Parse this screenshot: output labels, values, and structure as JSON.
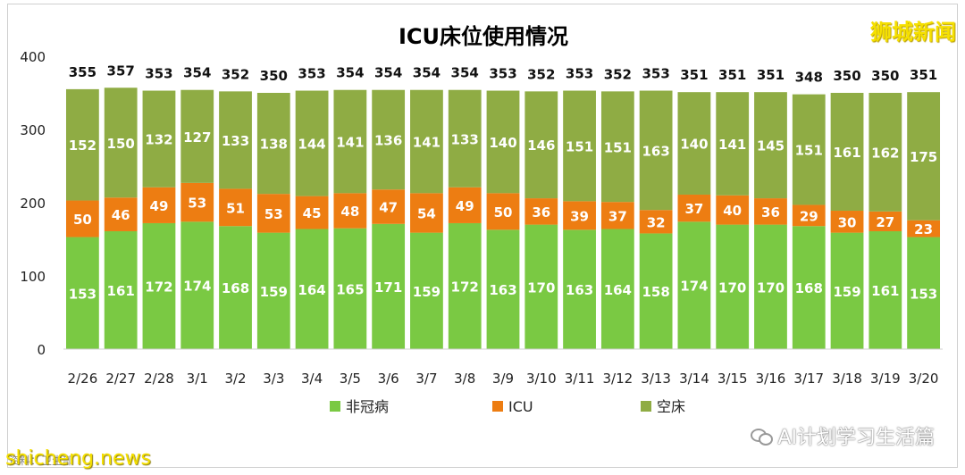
{
  "chart_data": {
    "type": "bar",
    "stacked": true,
    "title": "ICU床位使用情况",
    "ylim": [
      0,
      400
    ],
    "yticks": [
      0,
      100,
      200,
      300,
      400
    ],
    "grid": false,
    "legend_position": "bottom",
    "categories": [
      "2/26",
      "2/27",
      "2/28",
      "3/1",
      "3/2",
      "3/3",
      "3/4",
      "3/5",
      "3/6",
      "3/7",
      "3/8",
      "3/9",
      "3/10",
      "3/11",
      "3/12",
      "3/13",
      "3/14",
      "3/15",
      "3/16",
      "3/17",
      "3/18",
      "3/19",
      "3/20"
    ],
    "series": [
      {
        "name": "非冠病",
        "color": "#7ac943",
        "values": [
          153,
          161,
          172,
          174,
          168,
          159,
          164,
          165,
          171,
          159,
          172,
          163,
          170,
          163,
          164,
          158,
          174,
          170,
          170,
          168,
          159,
          161,
          153
        ]
      },
      {
        "name": "ICU",
        "color": "#ed7d12",
        "values": [
          50,
          46,
          49,
          53,
          51,
          53,
          45,
          48,
          47,
          54,
          49,
          50,
          36,
          39,
          37,
          32,
          37,
          40,
          36,
          29,
          30,
          27,
          23
        ]
      },
      {
        "name": "空床",
        "color": "#8fac44",
        "values": [
          152,
          150,
          132,
          127,
          133,
          138,
          144,
          141,
          136,
          141,
          133,
          140,
          146,
          151,
          151,
          163,
          140,
          141,
          145,
          151,
          161,
          162,
          175
        ]
      }
    ],
    "totals": [
      355,
      357,
      353,
      354,
      352,
      350,
      353,
      354,
      354,
      354,
      354,
      353,
      352,
      353,
      352,
      353,
      351,
      351,
      351,
      348,
      350,
      350,
      351
    ]
  },
  "watermarks": {
    "brand": "狮城新闻",
    "wechat": "AI计划学习生活篇",
    "site": "shicheng.news",
    "source": "资料：卫生部"
  }
}
